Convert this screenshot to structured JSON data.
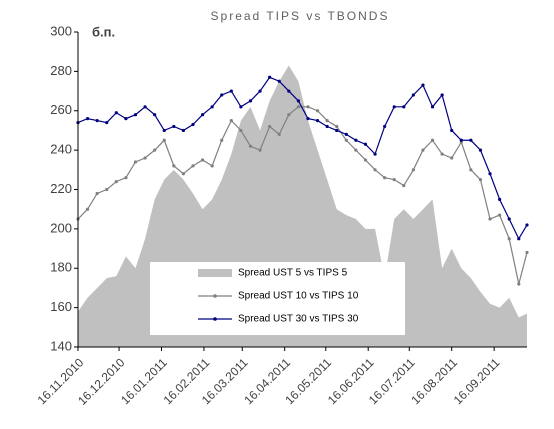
{
  "chart_data": {
    "type": "line",
    "title": "Spread TIPS vs TBONDS",
    "y_label": "б.п.",
    "x": [
      "16.11.2010",
      "23.11.2010",
      "30.11.2010",
      "07.12.2010",
      "14.12.2010",
      "21.12.2010",
      "28.12.2010",
      "04.01.2011",
      "11.01.2011",
      "18.01.2011",
      "25.01.2011",
      "01.02.2011",
      "08.02.2011",
      "15.02.2011",
      "22.02.2011",
      "01.03.2011",
      "08.03.2011",
      "15.03.2011",
      "22.03.2011",
      "29.03.2011",
      "05.04.2011",
      "12.04.2011",
      "19.04.2011",
      "26.04.2011",
      "03.05.2011",
      "10.05.2011",
      "17.05.2011",
      "24.05.2011",
      "31.05.2011",
      "07.06.2011",
      "14.06.2011",
      "21.06.2011",
      "28.06.2011",
      "05.07.2011",
      "12.07.2011",
      "19.07.2011",
      "26.07.2011",
      "02.08.2011",
      "09.08.2011",
      "16.08.2011",
      "23.08.2011",
      "30.08.2011",
      "06.09.2011",
      "13.09.2011",
      "20.09.2011",
      "27.09.2011",
      "04.10.2011",
      "10.10.2011"
    ],
    "series": [
      {
        "name": "Spread UST 5 vs TIPS 5",
        "kind": "area",
        "color": "#c0c0c0",
        "values": [
          158,
          165,
          170,
          175,
          176,
          186,
          180,
          195,
          215,
          225,
          230,
          225,
          218,
          210,
          215,
          225,
          238,
          255,
          262,
          250,
          265,
          275,
          283,
          275,
          255,
          240,
          225,
          210,
          207,
          205,
          200,
          200,
          175,
          205,
          210,
          205,
          210,
          215,
          180,
          190,
          180,
          175,
          168,
          162,
          160,
          165,
          155,
          157
        ]
      },
      {
        "name": "Spread UST 10 vs TIPS 10",
        "kind": "line",
        "color": "#808080",
        "values": [
          205,
          210,
          218,
          220,
          224,
          226,
          234,
          236,
          240,
          245,
          232,
          228,
          232,
          235,
          232,
          245,
          255,
          250,
          242,
          240,
          252,
          248,
          258,
          262,
          262,
          260,
          255,
          252,
          245,
          240,
          235,
          230,
          226,
          225,
          222,
          230,
          240,
          245,
          238,
          236,
          244,
          230,
          225,
          205,
          207,
          195,
          172,
          188
        ]
      },
      {
        "name": "Spread UST 30 vs TIPS 30",
        "kind": "line",
        "color": "#000080",
        "values": [
          254,
          256,
          255,
          254,
          259,
          256,
          258,
          262,
          258,
          250,
          252,
          250,
          253,
          258,
          262,
          268,
          270,
          262,
          265,
          270,
          277,
          275,
          270,
          265,
          256,
          255,
          252,
          250,
          248,
          245,
          243,
          238,
          252,
          262,
          262,
          268,
          273,
          262,
          268,
          250,
          245,
          245,
          240,
          228,
          215,
          205,
          195,
          202
        ]
      }
    ],
    "xlim": [
      "16.11.2010",
      "10.10.2011"
    ],
    "xticks": [
      "16.11.2010",
      "16.12.2010",
      "16.01.2011",
      "16.02.2011",
      "16.03.2011",
      "16.04.2011",
      "16.05.2011",
      "16.06.2011",
      "16.07.2011",
      "16.08.2011",
      "16.09.2011"
    ],
    "ylim": [
      140,
      300
    ],
    "yticks": [
      140,
      160,
      180,
      200,
      220,
      240,
      260,
      280,
      300
    ]
  }
}
